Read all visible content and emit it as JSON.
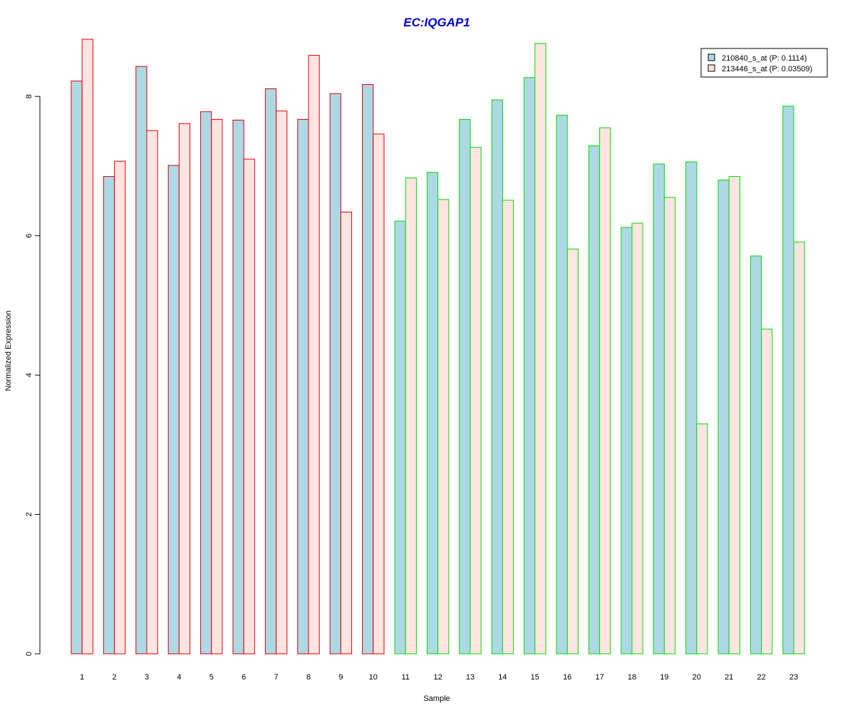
{
  "chart_data": {
    "type": "bar",
    "title": "EC:IQGAP1",
    "xlabel": "Sample",
    "ylabel": "Normalized Expression",
    "ylim": [
      0,
      8.8
    ],
    "yticks": [
      "0",
      "2",
      "4",
      "6",
      "8"
    ],
    "categories": [
      "1",
      "2",
      "3",
      "4",
      "5",
      "6",
      "7",
      "8",
      "9",
      "10",
      "11",
      "12",
      "13",
      "14",
      "15",
      "16",
      "17",
      "18",
      "19",
      "20",
      "21",
      "22",
      "23"
    ],
    "group_border_colors": [
      "#dd0000",
      "#dd0000",
      "#dd0000",
      "#dd0000",
      "#dd0000",
      "#dd0000",
      "#dd0000",
      "#dd0000",
      "#dd0000",
      "#dd0000",
      "#00dd00",
      "#00dd00",
      "#00dd00",
      "#00dd00",
      "#00dd00",
      "#00dd00",
      "#00dd00",
      "#00dd00",
      "#00dd00",
      "#00dd00",
      "#00dd00",
      "#00dd00",
      "#00dd00"
    ],
    "series": [
      {
        "name": "210840_s_at (P: 0.1114)",
        "fill": "#add8e6",
        "values": [
          8.22,
          6.85,
          8.43,
          7.01,
          7.78,
          7.66,
          8.11,
          7.67,
          8.04,
          8.17,
          6.21,
          6.91,
          7.67,
          7.95,
          8.27,
          7.73,
          7.29,
          6.12,
          7.03,
          7.06,
          6.8,
          5.71,
          7.86
        ]
      },
      {
        "name": "213446_s_at (P: 0.03509)",
        "fill": "#ffe4e1",
        "values": [
          8.82,
          7.07,
          7.51,
          7.61,
          7.67,
          7.1,
          7.79,
          8.59,
          6.34,
          7.46,
          6.83,
          6.52,
          7.27,
          6.51,
          8.76,
          5.81,
          7.55,
          6.18,
          6.55,
          3.3,
          6.85,
          4.66,
          5.91
        ]
      }
    ],
    "title_color": "#0000cc",
    "legend_position": "top-right",
    "grid": false
  }
}
